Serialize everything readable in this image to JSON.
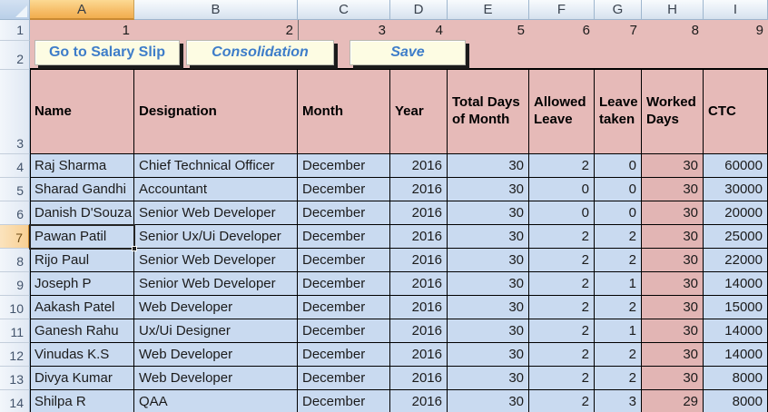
{
  "colors": {
    "band_pink": "#e7bcba",
    "header_cell_pink": "#e6bab8",
    "data_cell_blue": "#c9daf0",
    "worked_days_rose": "#e2b5b4",
    "grid_black": "#000000",
    "button_face": "#fdfce3",
    "button_text_blue": "#3e7dc9",
    "selected_header_orange": "#f6bd68"
  },
  "column_headers": [
    "A",
    "B",
    "C",
    "D",
    "E",
    "F",
    "G",
    "H",
    "I"
  ],
  "row_headers": [
    "1",
    "2",
    "3",
    "4",
    "5",
    "6",
    "7",
    "8",
    "9",
    "10",
    "11",
    "12",
    "13",
    "14"
  ],
  "selection": {
    "column": "A",
    "row": "7",
    "value": "Pawan Patil"
  },
  "row1_values": [
    "1",
    "2",
    "3",
    "4",
    "5",
    "6",
    "7",
    "8",
    "9"
  ],
  "buttons": [
    {
      "label": "Go to Salary Slip"
    },
    {
      "label": "Consolidation"
    },
    {
      "label": "Save"
    }
  ],
  "table": {
    "headers": [
      "Name",
      "Designation",
      "Month",
      "Year",
      "Total Days of Month",
      "Allowed Leave",
      "Leave taken",
      "Worked Days",
      "CTC"
    ],
    "rows": [
      [
        "Raj Sharma",
        "Chief Technical Officer",
        "December",
        "2016",
        "30",
        "2",
        "0",
        "30",
        "60000"
      ],
      [
        "Sharad Gandhi",
        "Accountant",
        "December",
        "2016",
        "30",
        "0",
        "0",
        "30",
        "30000"
      ],
      [
        "Danish D'Souza",
        "Senior Web Developer",
        "December",
        "2016",
        "30",
        "0",
        "0",
        "30",
        "20000"
      ],
      [
        "Pawan Patil",
        "Senior Ux/Ui Developer",
        "December",
        "2016",
        "30",
        "2",
        "2",
        "30",
        "25000"
      ],
      [
        "Rijo Paul",
        "Senior Web Developer",
        "December",
        "2016",
        "30",
        "2",
        "2",
        "30",
        "22000"
      ],
      [
        "Joseph P",
        "Senior Web Developer",
        "December",
        "2016",
        "30",
        "2",
        "1",
        "30",
        "14000"
      ],
      [
        "Aakash Patel",
        "Web Developer",
        "December",
        "2016",
        "30",
        "2",
        "2",
        "30",
        "15000"
      ],
      [
        "Ganesh Rahu",
        "Ux/Ui Designer",
        "December",
        "2016",
        "30",
        "2",
        "1",
        "30",
        "14000"
      ],
      [
        "Vinudas K.S",
        "Web Developer",
        "December",
        "2016",
        "30",
        "2",
        "2",
        "30",
        "14000"
      ],
      [
        "Divya Kumar",
        "Web Developer",
        "December",
        "2016",
        "30",
        "2",
        "2",
        "30",
        "8000"
      ],
      [
        "Shilpa R",
        "QAA",
        "December",
        "2016",
        "30",
        "2",
        "3",
        "29",
        "8000"
      ]
    ]
  }
}
